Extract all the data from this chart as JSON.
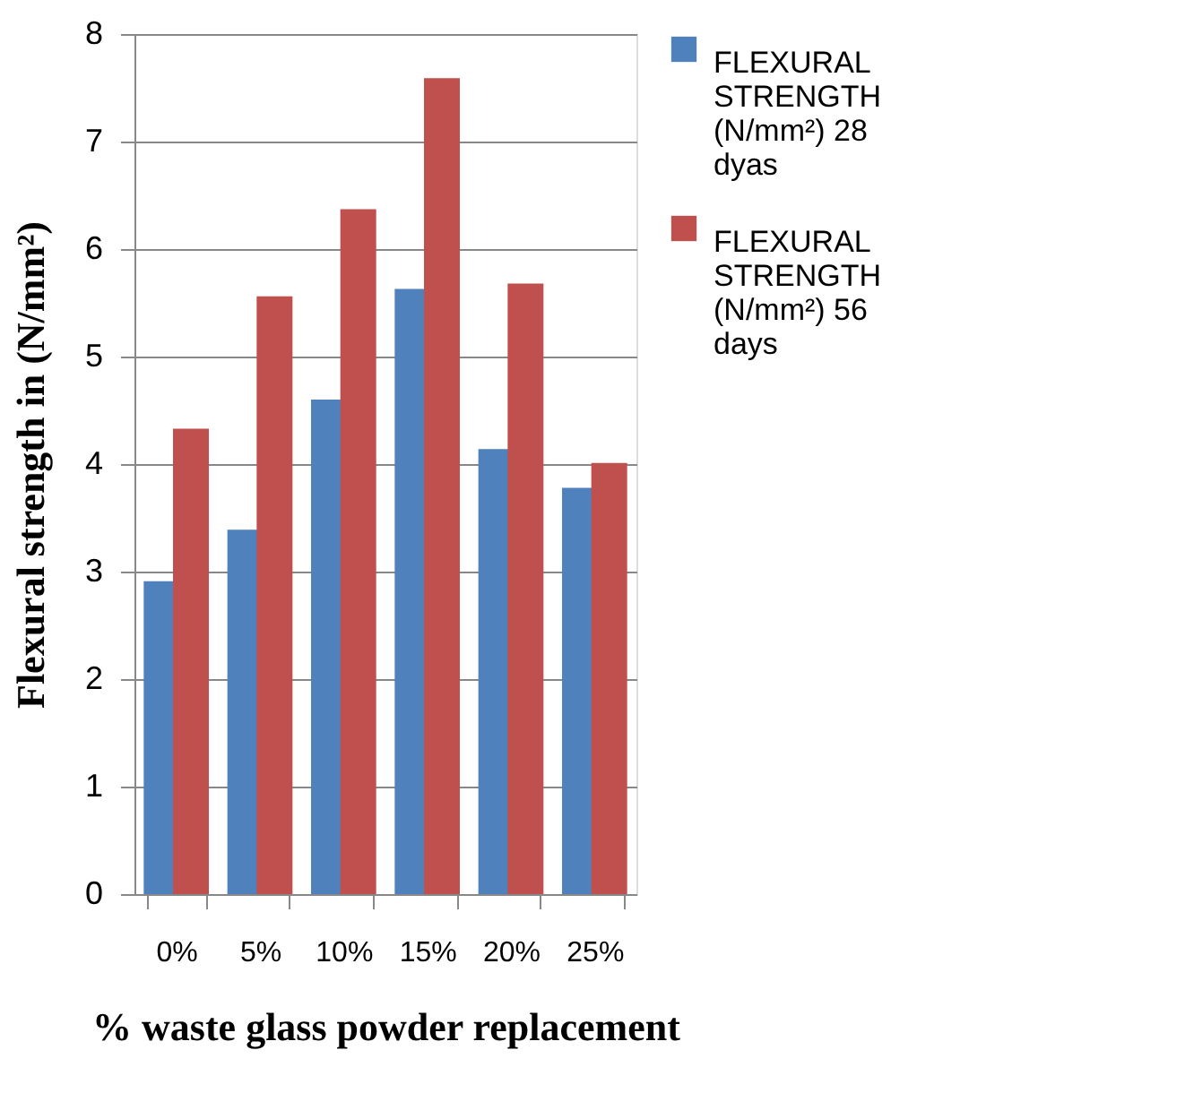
{
  "chart_data": {
    "type": "bar",
    "xlabel": "% waste glass powder replacement",
    "ylabel": "Flexural strength in (N/mm²)",
    "categories": [
      "0%",
      "5%",
      "10%",
      "15%",
      "20%",
      "25%"
    ],
    "series": [
      {
        "name": "FLEXURAL STRENGTH (N/mm²) 28 dyas",
        "color": "#4f81bd",
        "values": [
          2.91,
          3.39,
          4.6,
          5.63,
          4.14,
          3.78
        ]
      },
      {
        "name": "FLEXURAL STRENGTH (N/mm²) 56 days",
        "color": "#c0504d",
        "values": [
          4.33,
          5.56,
          6.37,
          7.59,
          5.68,
          4.01
        ]
      }
    ],
    "ylim": [
      0,
      8
    ],
    "yticks": [
      0,
      1,
      2,
      3,
      4,
      5,
      6,
      7,
      8
    ],
    "grid": "y",
    "legend": "right"
  }
}
